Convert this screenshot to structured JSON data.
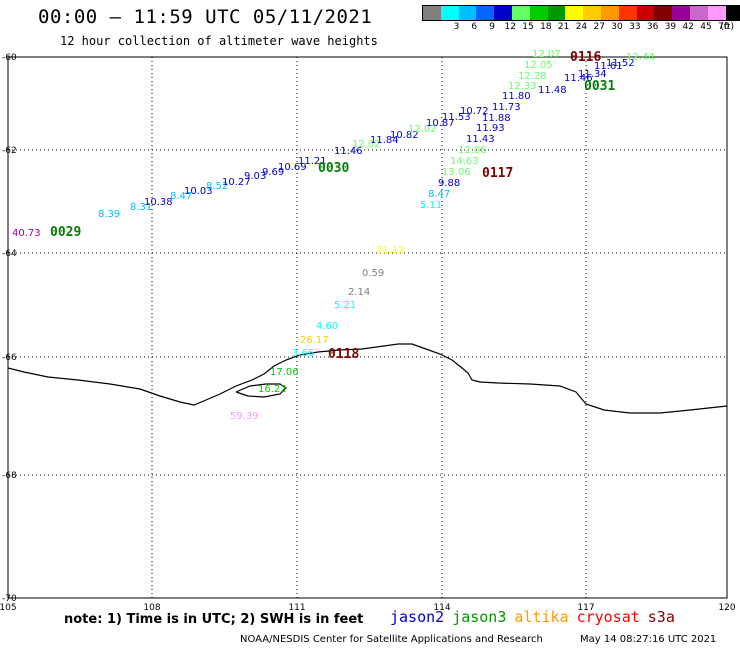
{
  "header": {
    "title": "00:00 – 11:59 UTC 05/11/2021",
    "subtitle": "12 hour collection of altimeter wave heights"
  },
  "legend": {
    "unit": "(ft)",
    "bins": [
      {
        "label": "",
        "color": "#808080"
      },
      {
        "label": "3",
        "color": "#00ffff"
      },
      {
        "label": "6",
        "color": "#00bfff"
      },
      {
        "label": "9",
        "color": "#0066ff"
      },
      {
        "label": "12",
        "color": "#0000cc"
      },
      {
        "label": "15",
        "color": "#66ff66"
      },
      {
        "label": "18",
        "color": "#00cc00"
      },
      {
        "label": "21",
        "color": "#009900"
      },
      {
        "label": "24",
        "color": "#ffff00"
      },
      {
        "label": "27",
        "color": "#ffcc00"
      },
      {
        "label": "30",
        "color": "#ff9900"
      },
      {
        "label": "33",
        "color": "#ff3300"
      },
      {
        "label": "36",
        "color": "#cc0000"
      },
      {
        "label": "39",
        "color": "#800000"
      },
      {
        "label": "42",
        "color": "#990099"
      },
      {
        "label": "45",
        "color": "#cc66cc"
      },
      {
        "label": "70",
        "color": "#ff99ff"
      },
      {
        "label": "",
        "color": "#000000"
      }
    ]
  },
  "map_axes": {
    "lat_labels": [
      "-60",
      "-62",
      "-64",
      "-66",
      "-68",
      "-70"
    ],
    "lon_labels": [
      "105",
      "108",
      "111",
      "114",
      "117",
      "120"
    ]
  },
  "pass_labels": [
    {
      "text": "0029",
      "color": "#008000"
    },
    {
      "text": "0030",
      "color": "#008000"
    },
    {
      "text": "0031",
      "color": "#008000"
    },
    {
      "text": "0116",
      "color": "#800000"
    },
    {
      "text": "0117",
      "color": "#800000"
    },
    {
      "text": "0118",
      "color": "#800000"
    }
  ],
  "wave_labels": [
    {
      "text": "40.73",
      "color": "#990099"
    },
    {
      "text": "8.39",
      "color": "#00bfff"
    },
    {
      "text": "8.31",
      "color": "#00bfff"
    },
    {
      "text": "10.38",
      "color": "#0000cc"
    },
    {
      "text": "8.47",
      "color": "#00bfff"
    },
    {
      "text": "10.03",
      "color": "#0000cc"
    },
    {
      "text": "8.52",
      "color": "#00bfff"
    },
    {
      "text": "10.27",
      "color": "#0000cc"
    },
    {
      "text": "9.03",
      "color": "#0000cc"
    },
    {
      "text": "9.69",
      "color": "#0000cc"
    },
    {
      "text": "10.69",
      "color": "#0000cc"
    },
    {
      "text": "11.21",
      "color": "#0000cc"
    },
    {
      "text": "11.46",
      "color": "#0000cc"
    },
    {
      "text": "12.02",
      "color": "#66ff66"
    },
    {
      "text": "11.84",
      "color": "#0000cc"
    },
    {
      "text": "10.82",
      "color": "#0000cc"
    },
    {
      "text": "12.02",
      "color": "#66ff66"
    },
    {
      "text": "10.87",
      "color": "#0000cc"
    },
    {
      "text": "11.53",
      "color": "#0000cc"
    },
    {
      "text": "10.72",
      "color": "#0000cc"
    },
    {
      "text": "11.88",
      "color": "#0000cc"
    },
    {
      "text": "11.93",
      "color": "#0000cc"
    },
    {
      "text": "11.43",
      "color": "#0000cc"
    },
    {
      "text": "11.73",
      "color": "#0000cc"
    },
    {
      "text": "11.80",
      "color": "#0000cc"
    },
    {
      "text": "12.33",
      "color": "#66ff66"
    },
    {
      "text": "11.48",
      "color": "#0000cc"
    },
    {
      "text": "12.28",
      "color": "#66ff66"
    },
    {
      "text": "12.05",
      "color": "#66ff66"
    },
    {
      "text": "12.07",
      "color": "#66ff66"
    },
    {
      "text": "11.46",
      "color": "#0000cc"
    },
    {
      "text": "11.34",
      "color": "#0000cc"
    },
    {
      "text": "11.61",
      "color": "#0000cc"
    },
    {
      "text": "11.52",
      "color": "#0000cc"
    },
    {
      "text": "12.44",
      "color": "#66ff66"
    },
    {
      "text": "12.06",
      "color": "#66ff66"
    },
    {
      "text": "14.63",
      "color": "#66ff66"
    },
    {
      "text": "13.06",
      "color": "#66ff66"
    },
    {
      "text": "9.88",
      "color": "#0000cc"
    },
    {
      "text": "8.47",
      "color": "#00bfff"
    },
    {
      "text": "5.11",
      "color": "#00ffff"
    },
    {
      "text": "21.12",
      "color": "#ffff00"
    },
    {
      "text": "0.59",
      "color": "#808080"
    },
    {
      "text": "2.14",
      "color": "#808080"
    },
    {
      "text": "5.21",
      "color": "#00ffff"
    },
    {
      "text": "4.60",
      "color": "#00ffff"
    },
    {
      "text": "26.17",
      "color": "#ffcc00"
    },
    {
      "text": "3.66",
      "color": "#00ffff"
    },
    {
      "text": "17.06",
      "color": "#00cc00"
    },
    {
      "text": "16.22",
      "color": "#00cc00"
    },
    {
      "text": "59.39",
      "color": "#ff99ff"
    }
  ],
  "footer": {
    "note": "note: 1) Time is in UTC; 2) SWH is in feet",
    "satellites": [
      {
        "name": "jason2",
        "color": "#0000cc"
      },
      {
        "name": "jason3",
        "color": "#009900"
      },
      {
        "name": "altika",
        "color": "#ff9900"
      },
      {
        "name": "cryosat",
        "color": "#ff0000"
      },
      {
        "name": "s3a",
        "color": "#800000"
      }
    ],
    "credit": "NOAA/NESDIS Center for Satellite Applications and Research",
    "timestamp": "May 14 08:27:16 UTC 2021"
  }
}
